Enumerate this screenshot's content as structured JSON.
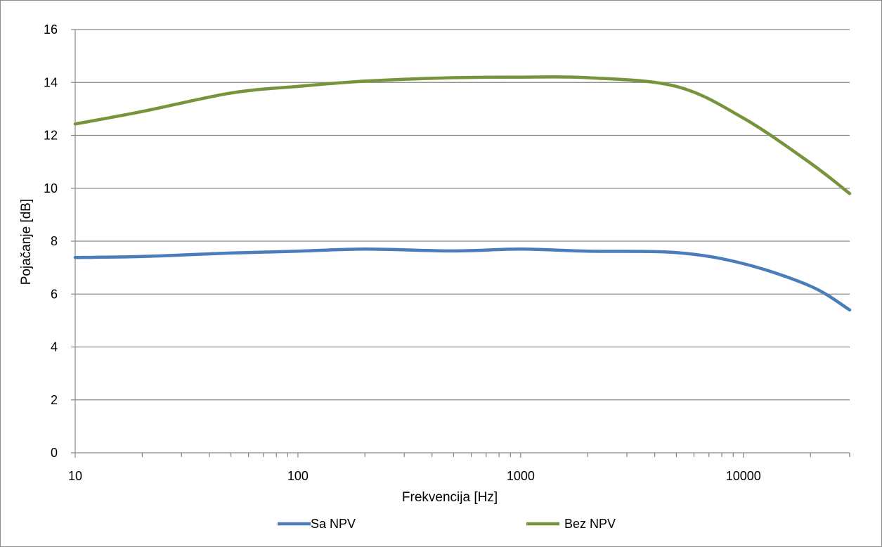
{
  "chart_data": {
    "type": "line",
    "title": "",
    "xlabel": "Frekvencija [Hz]",
    "ylabel": "Pojačanje [dB]",
    "x_scale": "log",
    "xlim": [
      10,
      30000
    ],
    "ylim": [
      0,
      16
    ],
    "x_ticks": [
      10,
      100,
      1000,
      10000
    ],
    "y_ticks": [
      0,
      2,
      4,
      6,
      8,
      10,
      12,
      14,
      16
    ],
    "grid": "horizontal",
    "legend_position": "bottom",
    "series": [
      {
        "name": "Sa NPV",
        "color": "#4a7ebb",
        "points": [
          [
            10,
            7.38
          ],
          [
            20,
            7.42
          ],
          [
            50,
            7.55
          ],
          [
            100,
            7.62
          ],
          [
            200,
            7.7
          ],
          [
            500,
            7.63
          ],
          [
            1000,
            7.7
          ],
          [
            2000,
            7.62
          ],
          [
            5000,
            7.57
          ],
          [
            10000,
            7.15
          ],
          [
            20000,
            6.3
          ],
          [
            30000,
            5.4
          ]
        ]
      },
      {
        "name": "Bez NPV",
        "color": "#77933c",
        "points": [
          [
            10,
            12.43
          ],
          [
            20,
            12.9
          ],
          [
            50,
            13.6
          ],
          [
            100,
            13.85
          ],
          [
            200,
            14.05
          ],
          [
            500,
            14.18
          ],
          [
            1000,
            14.2
          ],
          [
            2000,
            14.18
          ],
          [
            5000,
            13.85
          ],
          [
            10000,
            12.65
          ],
          [
            20000,
            10.95
          ],
          [
            30000,
            9.8
          ]
        ]
      }
    ]
  }
}
